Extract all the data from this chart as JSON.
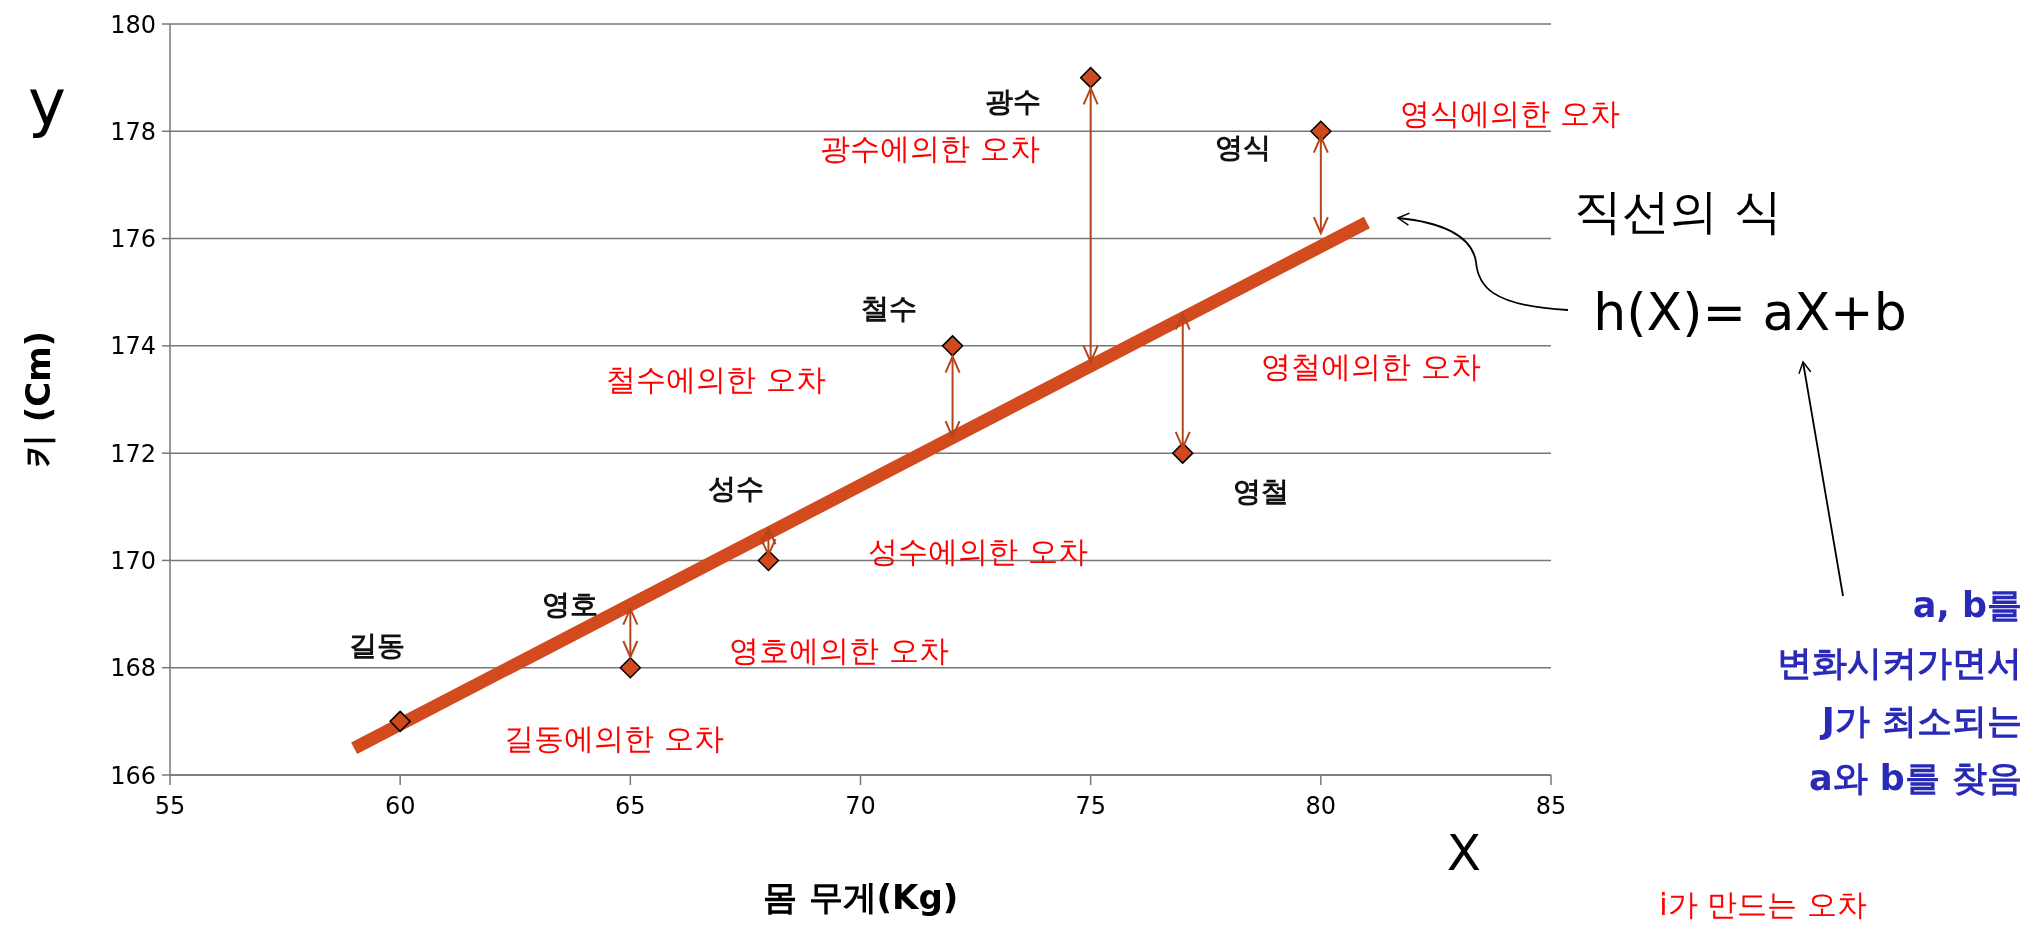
{
  "chart_data": {
    "type": "scatter",
    "xlabel": "몸 무게(Kg)",
    "ylabel": "키 (Cm)",
    "xlim": [
      55,
      85
    ],
    "xticks": [
      55,
      60,
      65,
      70,
      75,
      80,
      85
    ],
    "ylim": [
      166,
      180
    ],
    "yticks": [
      166,
      168,
      170,
      172,
      174,
      176,
      178,
      180
    ],
    "grid": "y",
    "series": [
      {
        "color": "#d04a1e",
        "marker": "diamond",
        "x": [
          60,
          65,
          68,
          72,
          75,
          77,
          80
        ],
        "values": [
          167,
          168,
          170,
          174,
          179,
          172,
          178
        ],
        "errors": [
          null,
          [
            168.2,
            169.1
          ],
          [
            170.1,
            170.6
          ],
          [
            172.3,
            173.8
          ],
          [
            173.7,
            178.8
          ],
          [
            172.1,
            174.6
          ],
          [
            176.1,
            177.9
          ]
        ]
      },
      {
        "type": "line",
        "color": "#d24a1e",
        "marker": "none",
        "x": [
          59,
          81
        ],
        "values": [
          166.5,
          176.3
        ]
      }
    ],
    "annotations": [
      {
        "text": "광수",
        "x": 75,
        "y": 179
      },
      {
        "text": "영식",
        "x": 80,
        "y": 178
      },
      {
        "text": "철수",
        "x": 72,
        "y": 174
      },
      {
        "text": "영철",
        "x": 77,
        "y": 172
      },
      {
        "text": "성수",
        "x": 68,
        "y": 170
      },
      {
        "text": "영호",
        "x": 65,
        "y": 168
      },
      {
        "text": "길동",
        "x": 60,
        "y": 167
      },
      "광수에의한  오차",
      "영식에의한 오차",
      "철수에의한 오차",
      "영철에의한 오차",
      "성수에의한 오차",
      "영호에의한 오차",
      "길동에의한 오차",
      "y",
      "X",
      "직선의 식",
      "h(X)= aX+b",
      "a, b를\n변화시켜가면서\nJ가 최소되는\na와 b를 찾음",
      "i가 만드는 오차"
    ]
  }
}
